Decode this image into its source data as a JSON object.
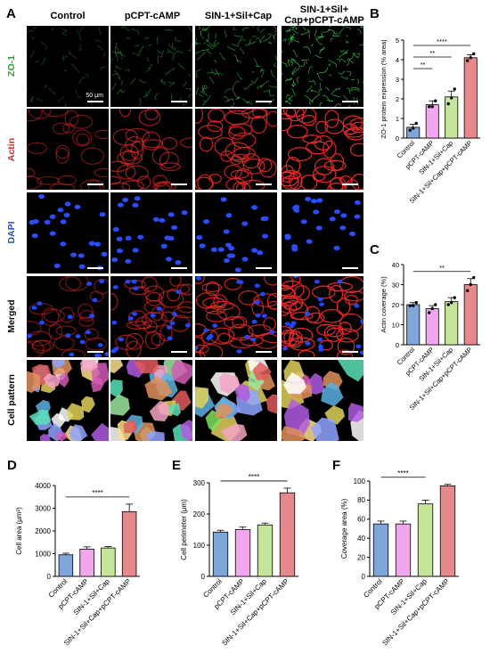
{
  "panels": {
    "A": "A",
    "B": "B",
    "C": "C",
    "D": "D",
    "E": "E",
    "F": "F"
  },
  "columns": [
    "Control",
    "pCPT-cAMP",
    "SIN-1+Sil+Cap",
    "SIN-1+Sil+ Cap+pCPT-cAMP"
  ],
  "rows": [
    {
      "label": "ZO-1",
      "color": "#2ca02c"
    },
    {
      "label": "Actin",
      "color": "#e0201b"
    },
    {
      "label": "DAPI",
      "color": "#1f4fd6"
    },
    {
      "label": "Merged",
      "color": "#000000"
    },
    {
      "label": "Cell pattern",
      "color": "#000000"
    }
  ],
  "scale_label": "50 μm",
  "groups": [
    "Control",
    "pCPT-cAMP",
    "SIN-1+Sil+Cap",
    "SIN-1+Sil+Cap+pCPT-cAMP"
  ],
  "bar_colors": [
    "#7ea6d8",
    "#f2a6ee",
    "#c6e59a",
    "#e6898c"
  ],
  "chart_data": [
    {
      "id": "B",
      "type": "bar",
      "ylabel": "ZO-1 protein expression (% area)",
      "ylim": [
        0,
        5
      ],
      "yticks": [
        0,
        1,
        2,
        3,
        4,
        5
      ],
      "values": [
        0.55,
        1.7,
        2.1,
        4.1
      ],
      "errors": [
        0.15,
        0.2,
        0.3,
        0.15
      ],
      "points": [
        [
          0.4,
          0.5,
          0.75
        ],
        [
          1.6,
          1.6,
          1.9
        ],
        [
          1.75,
          2.05,
          2.5
        ],
        [
          3.95,
          4.1,
          4.3
        ]
      ],
      "significance": [
        {
          "from": 0,
          "to": 1,
          "label": "**"
        },
        {
          "from": 0,
          "to": 2,
          "label": "**"
        },
        {
          "from": 0,
          "to": 3,
          "label": "****"
        }
      ]
    },
    {
      "id": "C",
      "type": "bar",
      "ylabel": "Actin coverage (%)",
      "ylim": [
        0,
        40
      ],
      "yticks": [
        0,
        10,
        20,
        30,
        40
      ],
      "values": [
        20,
        18,
        21.5,
        30
      ],
      "errors": [
        1,
        1.5,
        2,
        3
      ],
      "points": [
        [
          19.5,
          19.5,
          21
        ],
        [
          16,
          18,
          20
        ],
        [
          20,
          21,
          23.5
        ],
        [
          27,
          30,
          33.5
        ]
      ],
      "significance": [
        {
          "from": 0,
          "to": 3,
          "label": "**"
        }
      ]
    },
    {
      "id": "D",
      "type": "bar",
      "ylabel": "Cell area (μm²)",
      "ylim": [
        0,
        4000
      ],
      "yticks": [
        0,
        1000,
        2000,
        3000,
        4000
      ],
      "values": [
        950,
        1200,
        1250,
        2850
      ],
      "errors": [
        70,
        100,
        60,
        330
      ],
      "points": [],
      "significance": [
        {
          "from": 0,
          "to": 3,
          "label": "****"
        }
      ]
    },
    {
      "id": "E",
      "type": "bar",
      "ylabel": "Cell perimeter (μm)",
      "ylim": [
        0,
        300
      ],
      "yticks": [
        0,
        100,
        200,
        300
      ],
      "values": [
        142,
        150,
        165,
        268
      ],
      "errors": [
        6,
        8,
        6,
        15
      ],
      "points": [],
      "significance": [
        {
          "from": 0,
          "to": 3,
          "label": "****"
        }
      ]
    },
    {
      "id": "F",
      "type": "bar",
      "ylabel": "Coverage area (%)",
      "ylim": [
        0,
        100
      ],
      "yticks": [
        0,
        20,
        40,
        60,
        80,
        100
      ],
      "values": [
        55,
        55,
        76,
        95
      ],
      "errors": [
        3,
        3,
        4,
        1.5
      ],
      "points": [],
      "significance": [
        {
          "from": 0,
          "to": 2,
          "label": "****"
        },
        {
          "from": 0,
          "to": 3,
          "label": "****"
        }
      ]
    }
  ]
}
